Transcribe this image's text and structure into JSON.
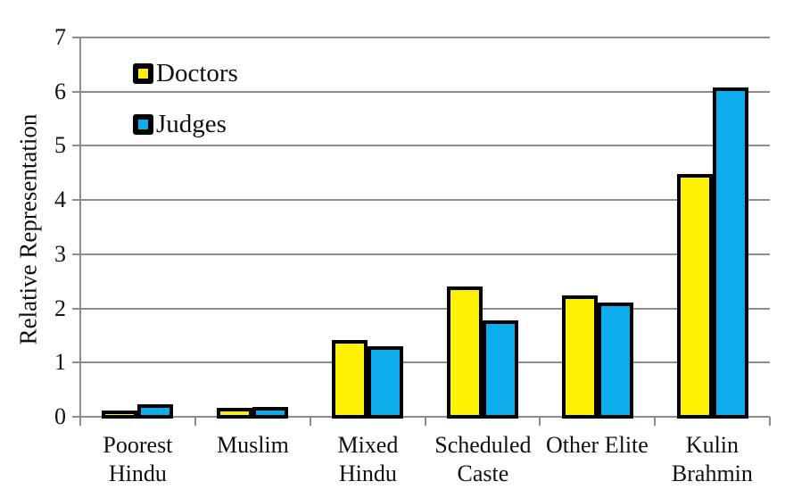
{
  "chart_data": {
    "type": "bar",
    "title": "",
    "xlabel": "",
    "ylabel": "Relative Representation",
    "categories": [
      "Poorest Hindu",
      "Muslim",
      "Mixed Hindu",
      "Scheduled Caste",
      "Other Elite",
      "Kulin Brahmin"
    ],
    "category_label_lines": [
      [
        "Poorest",
        "Hindu"
      ],
      [
        "Muslim"
      ],
      [
        "Mixed",
        "Hindu"
      ],
      [
        "Scheduled",
        "Caste"
      ],
      [
        "Other Elite"
      ],
      [
        "Kulin",
        "Brahmin"
      ]
    ],
    "series": [
      {
        "name": "Doctors",
        "color": "#FFF200",
        "values": [
          0.08,
          0.13,
          1.39,
          2.37,
          2.21,
          4.45
        ]
      },
      {
        "name": "Judges",
        "color": "#0DACEC",
        "values": [
          0.19,
          0.15,
          1.27,
          1.75,
          2.07,
          6.05
        ]
      }
    ],
    "ylim": [
      0,
      7
    ],
    "yticks": [
      0,
      1,
      2,
      3,
      4,
      5,
      6,
      7
    ],
    "grid": "horizontal",
    "legend_position": "top-left-inside",
    "bar_border_color": "#000000",
    "axis_color": "#8C8C8C",
    "text_color": "#101010"
  }
}
